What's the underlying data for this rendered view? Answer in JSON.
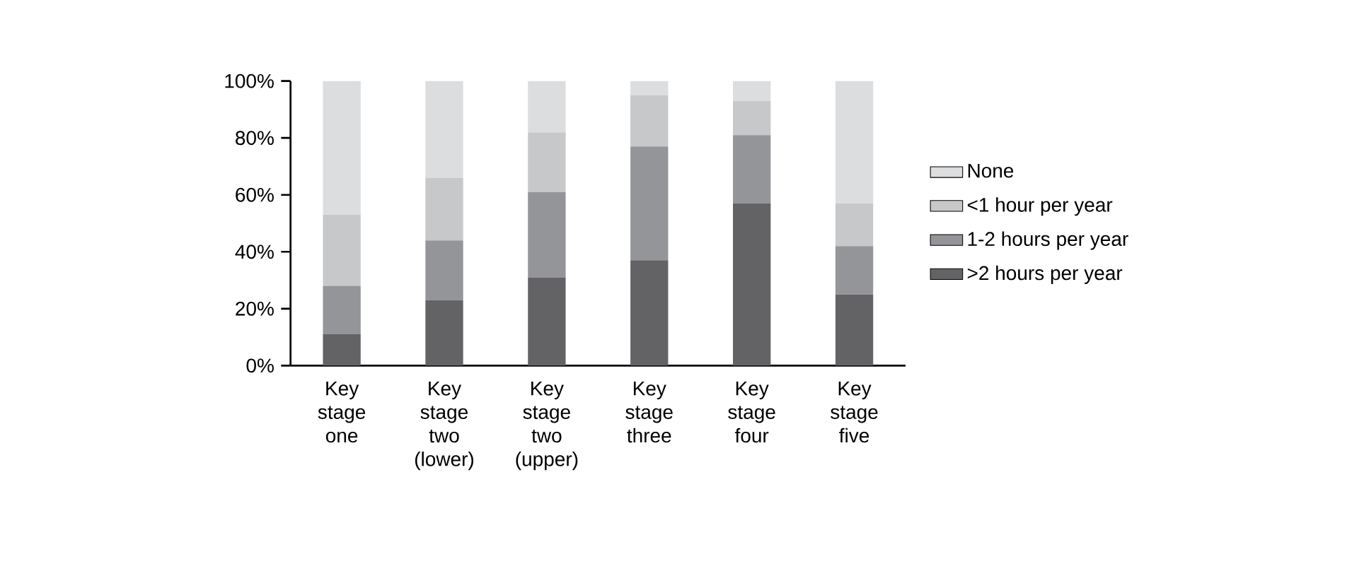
{
  "chart_data": {
    "type": "bar",
    "stacked": true,
    "categories": [
      "Key stage one",
      "Key stage two (lower)",
      "Key stage two (upper)",
      "Key stage three",
      "Key stage four",
      "Key stage five"
    ],
    "series": [
      {
        "name": ">2 hours per year",
        "color": "#636365",
        "values": [
          11,
          23,
          31,
          37,
          57,
          25
        ]
      },
      {
        "name": "1-2 hours per year",
        "color": "#949598",
        "values": [
          17,
          21,
          30,
          40,
          24,
          17
        ]
      },
      {
        "name": "<1 hour per year",
        "color": "#c7c8ca",
        "values": [
          25,
          22,
          21,
          18,
          12,
          15
        ]
      },
      {
        "name": "None",
        "color": "#dcdddf",
        "values": [
          47,
          34,
          18,
          5,
          7,
          43
        ]
      }
    ],
    "ylim": [
      0,
      100
    ],
    "yticks": [
      {
        "value": 0,
        "label": "0%"
      },
      {
        "value": 20,
        "label": "20%"
      },
      {
        "value": 40,
        "label": "40%"
      },
      {
        "value": 60,
        "label": "60%"
      },
      {
        "value": 80,
        "label": "80%"
      },
      {
        "value": 100,
        "label": "100%"
      }
    ],
    "legend": "right"
  }
}
